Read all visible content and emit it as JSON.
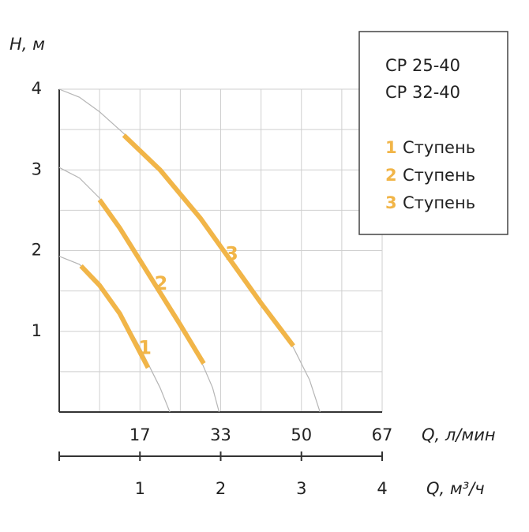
{
  "chart_data": {
    "type": "line",
    "ylabel": "H, м",
    "xlabel": "Q, м³/ч",
    "x2label": "Q, л/мин",
    "xlim": [
      0,
      4
    ],
    "xticks": [
      1,
      2,
      3,
      4
    ],
    "minor_xticks": [
      0.5,
      1.5,
      2.5,
      3.5
    ],
    "x2lim": [
      0,
      66.67
    ],
    "x2ticks": [
      {
        "value": 16.67,
        "label": "17"
      },
      {
        "value": 33.33,
        "label": "33"
      },
      50,
      {
        "value": 66.67,
        "label": "67"
      }
    ],
    "ylim": [
      0,
      4
    ],
    "yticks": [
      1,
      2,
      3,
      4
    ],
    "minor_yticks": [
      0.5,
      1.5,
      2.5,
      3.5
    ],
    "grid": true,
    "legend_title": [
      "CP 25-40",
      "CP 32-40"
    ],
    "curve_color": "#b5b5b5",
    "series": [
      {
        "label": "1",
        "name": "Ступень",
        "color": "#f1b548",
        "x": [
          0,
          0.25,
          0.5,
          0.75,
          1.0,
          1.25,
          1.37
        ],
        "values": [
          1.93,
          1.83,
          1.6,
          1.25,
          0.8,
          0.3,
          0
        ],
        "working_x": [
          0.27,
          0.5,
          0.75,
          1.1
        ],
        "working_values": [
          1.81,
          1.57,
          1.22,
          0.55
        ]
      },
      {
        "label": "2",
        "name": "Ступень",
        "color": "#f1b548",
        "x": [
          0,
          0.25,
          0.5,
          0.75,
          1.0,
          1.25,
          1.5,
          1.75,
          1.9,
          1.98
        ],
        "values": [
          3.03,
          2.9,
          2.65,
          2.3,
          1.9,
          1.5,
          1.1,
          0.65,
          0.3,
          0
        ],
        "working_x": [
          0.5,
          0.75,
          1.0,
          1.25,
          1.5,
          1.79
        ],
        "working_values": [
          2.63,
          2.28,
          1.88,
          1.48,
          1.08,
          0.6
        ]
      },
      {
        "label": "3",
        "name": "Ступень",
        "color": "#f1b548",
        "x": [
          0,
          0.25,
          0.5,
          0.8,
          1.25,
          1.75,
          2.25,
          2.5,
          2.9,
          3.1,
          3.23
        ],
        "values": [
          4.0,
          3.9,
          3.72,
          3.45,
          3.0,
          2.4,
          1.7,
          1.35,
          0.8,
          0.4,
          0
        ],
        "working_x": [
          0.8,
          1.25,
          1.75,
          2.25,
          2.5,
          2.9
        ],
        "working_values": [
          3.43,
          3.0,
          2.4,
          1.7,
          1.35,
          0.82
        ]
      }
    ]
  }
}
